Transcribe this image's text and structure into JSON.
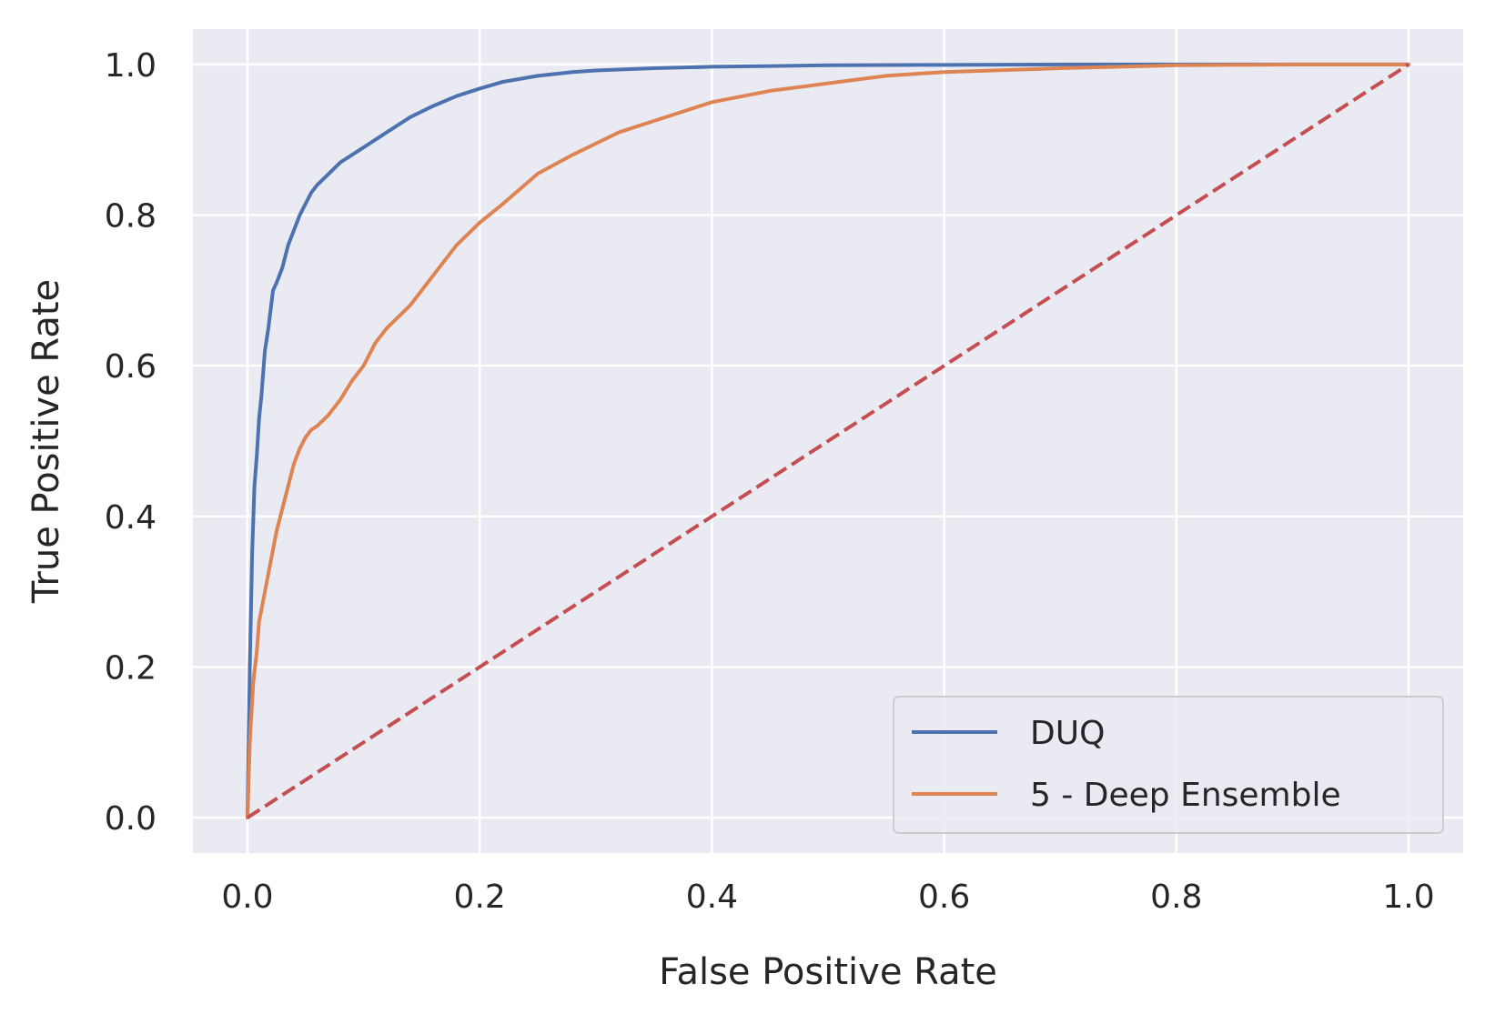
{
  "chart_data": {
    "type": "line",
    "xlabel": "False Positive Rate",
    "ylabel": "True Positive Rate",
    "xlim": [
      -0.047,
      1.047
    ],
    "ylim": [
      -0.047,
      1.047
    ],
    "xticks": [
      "0.0",
      "0.2",
      "0.4",
      "0.6",
      "0.8",
      "1.0"
    ],
    "yticks": [
      "0.0",
      "0.2",
      "0.4",
      "0.6",
      "0.8",
      "1.0"
    ],
    "grid": true,
    "legend_position": "lower-right",
    "background_color": "#eaeaf2",
    "grid_color": "#ffffff",
    "series": [
      {
        "name": "DUQ",
        "color": "#4c72b0",
        "dash": "solid",
        "x": [
          0,
          0.002,
          0.004,
          0.006,
          0.008,
          0.01,
          0.012,
          0.015,
          0.018,
          0.022,
          0.025,
          0.03,
          0.035,
          0.04,
          0.045,
          0.05,
          0.055,
          0.06,
          0.07,
          0.08,
          0.09,
          0.1,
          0.12,
          0.14,
          0.16,
          0.18,
          0.2,
          0.22,
          0.25,
          0.28,
          0.3,
          0.35,
          0.4,
          0.45,
          0.5,
          0.6,
          0.7,
          0.8,
          0.9,
          1.0
        ],
        "y": [
          0,
          0.2,
          0.35,
          0.44,
          0.48,
          0.53,
          0.56,
          0.62,
          0.65,
          0.7,
          0.71,
          0.73,
          0.76,
          0.78,
          0.8,
          0.815,
          0.83,
          0.84,
          0.855,
          0.87,
          0.88,
          0.89,
          0.91,
          0.93,
          0.945,
          0.958,
          0.968,
          0.977,
          0.985,
          0.99,
          0.992,
          0.995,
          0.997,
          0.998,
          0.999,
          0.9995,
          1.0,
          1.0,
          1.0,
          1.0
        ]
      },
      {
        "name": "5 - Deep Ensemble",
        "color": "#dd8452",
        "dash": "solid",
        "x": [
          0,
          0.002,
          0.005,
          0.008,
          0.01,
          0.015,
          0.02,
          0.025,
          0.03,
          0.035,
          0.04,
          0.045,
          0.05,
          0.055,
          0.06,
          0.07,
          0.08,
          0.09,
          0.1,
          0.11,
          0.12,
          0.14,
          0.16,
          0.18,
          0.2,
          0.22,
          0.25,
          0.28,
          0.3,
          0.32,
          0.35,
          0.4,
          0.45,
          0.5,
          0.55,
          0.6,
          0.7,
          0.8,
          0.9,
          1.0
        ],
        "y": [
          0,
          0.1,
          0.18,
          0.22,
          0.26,
          0.3,
          0.34,
          0.38,
          0.41,
          0.44,
          0.47,
          0.49,
          0.505,
          0.515,
          0.52,
          0.535,
          0.555,
          0.58,
          0.6,
          0.63,
          0.65,
          0.68,
          0.72,
          0.76,
          0.79,
          0.815,
          0.855,
          0.88,
          0.895,
          0.91,
          0.925,
          0.95,
          0.965,
          0.975,
          0.985,
          0.99,
          0.995,
          0.999,
          1.0,
          1.0
        ]
      },
      {
        "name": "",
        "color": "#c44e52",
        "dash": "dashed",
        "x": [
          0,
          1
        ],
        "y": [
          0,
          1
        ]
      }
    ]
  }
}
